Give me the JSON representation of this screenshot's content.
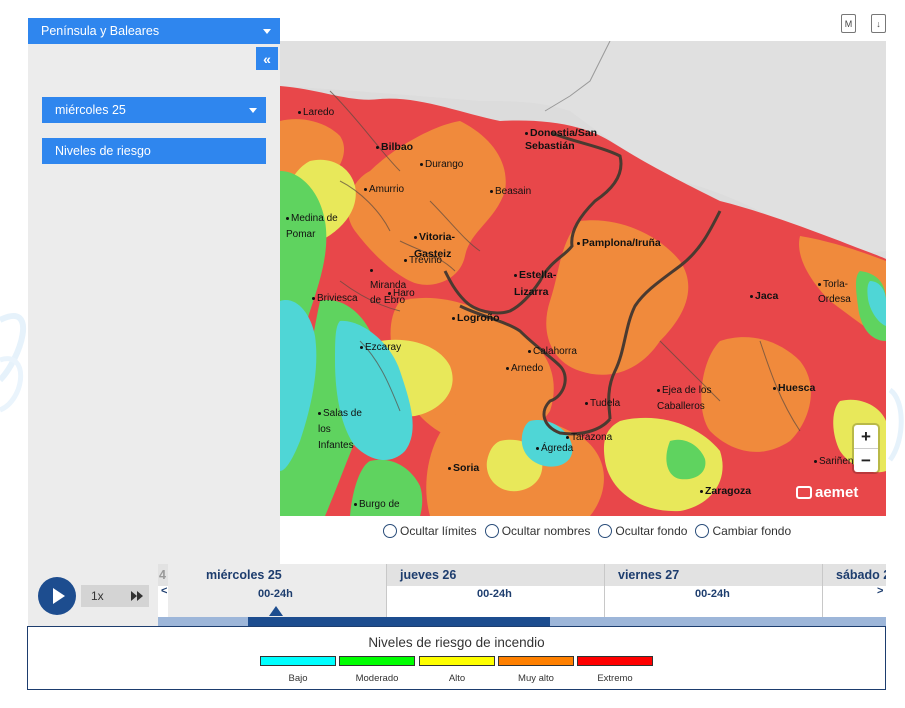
{
  "controls": {
    "region": "Península y Baleares",
    "collapse_icon": "«",
    "date": "miércoles 25",
    "layer": "Niveles de riesgo"
  },
  "toolbar": {
    "m_icon_label": "M",
    "download_icon_label": "↓"
  },
  "map": {
    "cities": [
      {
        "name": "Laredo",
        "big": false
      },
      {
        "name": "Bilbao",
        "big": true
      },
      {
        "name": "Durango",
        "big": false
      },
      {
        "name": "Amurrio",
        "big": false
      },
      {
        "name": "Donostia/San Sebastián",
        "big": true
      },
      {
        "name": "Beasain",
        "big": false
      },
      {
        "name": "Medina de Pomar",
        "big": false
      },
      {
        "name": "Vitoria-Gasteiz",
        "big": true
      },
      {
        "name": "Treviño",
        "big": false
      },
      {
        "name": "Miranda de Ebro",
        "big": false
      },
      {
        "name": "Haro",
        "big": false
      },
      {
        "name": "Pamplona/Iruña",
        "big": true
      },
      {
        "name": "Estella-Lizarra",
        "big": true
      },
      {
        "name": "Briviesca",
        "big": false
      },
      {
        "name": "Logroño",
        "big": true
      },
      {
        "name": "Jaca",
        "big": true
      },
      {
        "name": "Torla-Ordesa",
        "big": false
      },
      {
        "name": "Ezcaray",
        "big": false
      },
      {
        "name": "Calahorra",
        "big": false
      },
      {
        "name": "Arnedo",
        "big": false
      },
      {
        "name": "Tudela",
        "big": false
      },
      {
        "name": "Ejea de los Caballeros",
        "big": false
      },
      {
        "name": "Huesca",
        "big": true
      },
      {
        "name": "Salas de los Infantes",
        "big": false
      },
      {
        "name": "Tarazona",
        "big": false
      },
      {
        "name": "Ágreda",
        "big": false
      },
      {
        "name": "Soria",
        "big": true
      },
      {
        "name": "Sariñena",
        "big": false
      },
      {
        "name": "Zaragoza",
        "big": true
      },
      {
        "name": "Burgo de",
        "big": false
      }
    ],
    "zoom_in": "+",
    "zoom_out": "−",
    "brand": "aemet"
  },
  "options": {
    "hide_limits": "Ocultar límites",
    "hide_names": "Ocultar nombres",
    "hide_background": "Ocultar fondo",
    "change_background": "Cambiar fondo"
  },
  "player": {
    "speed": "1x"
  },
  "timeline": {
    "left_stub": "4",
    "days": [
      {
        "name": "miércoles 25",
        "slot": "00-24h"
      },
      {
        "name": "jueves 26",
        "slot": "00-24h"
      },
      {
        "name": "viernes 27",
        "slot": "00-24h"
      },
      {
        "name": "sábado 2",
        "slot": ""
      }
    ],
    "prev": "<",
    "next": ">"
  },
  "legend": {
    "title": "Niveles de riesgo de incendio",
    "levels": [
      {
        "label": "Bajo",
        "color": "#00ffff"
      },
      {
        "label": "Moderado",
        "color": "#00ff00"
      },
      {
        "label": "Alto",
        "color": "#ffff00"
      },
      {
        "label": "Muy alto",
        "color": "#ff8000"
      },
      {
        "label": "Extremo",
        "color": "#ff0000"
      }
    ]
  },
  "colors": {
    "accent": "#2f86ee",
    "nav_dark": "#1d4d8f",
    "risk_low": "#4fd6d6",
    "risk_moderate": "#5fd35f",
    "risk_high": "#e8e85a",
    "risk_very_high": "#f08a3c",
    "risk_extreme": "#e8474a"
  }
}
